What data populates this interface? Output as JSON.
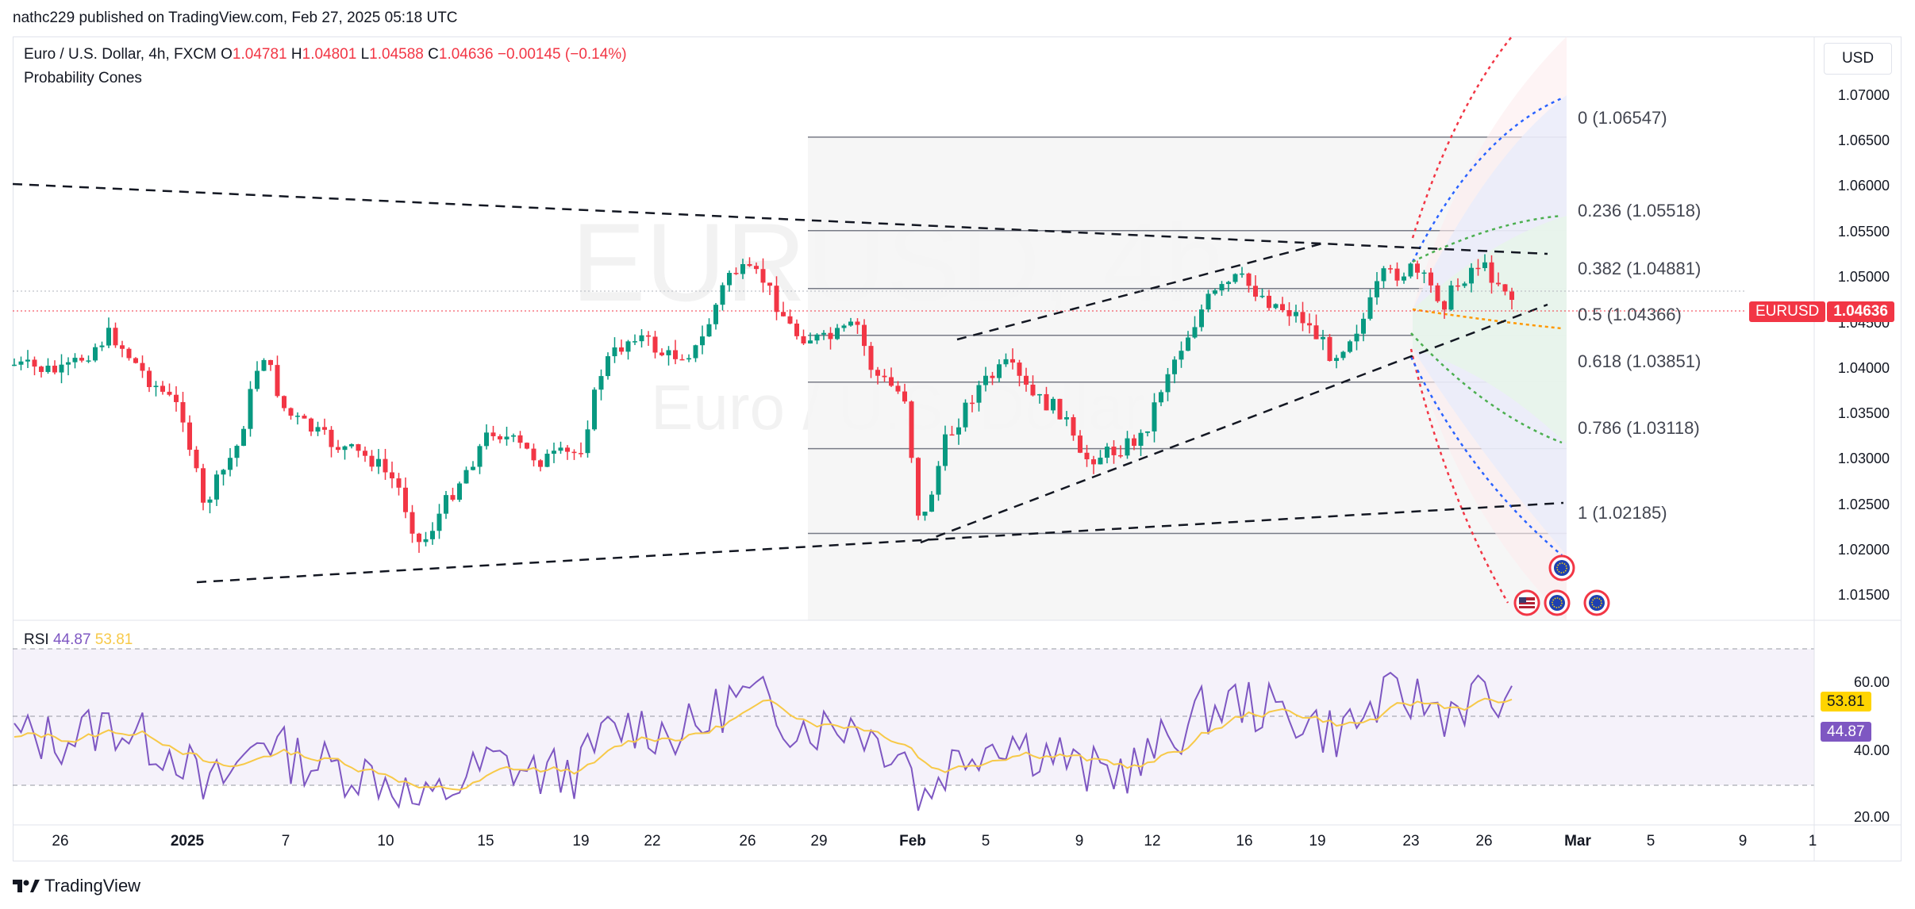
{
  "publisher": "nathc229 published on TradingView.com, Feb 27, 2025 05:18 UTC",
  "symbol": {
    "title": "Euro / U.S. Dollar, 4h, FXCM",
    "o_label": "O",
    "o": "1.04781",
    "h_label": "H",
    "h": "1.04801",
    "l_label": "L",
    "l": "1.04588",
    "c_label": "C",
    "c": "1.04636",
    "change": "−0.00145 (−0.14%)",
    "indicator": "Probability Cones"
  },
  "watermark": {
    "line1": "EURUSD, 4h",
    "line2": "Euro / U.S. Dollar"
  },
  "currency": "USD",
  "price_axis": [
    "1.07000",
    "1.06500",
    "1.06000",
    "1.05500",
    "1.05000",
    "1.04500",
    "1.04000",
    "1.03500",
    "1.03000",
    "1.02500",
    "1.02000",
    "1.01500"
  ],
  "price_tag": {
    "symbol": "EURUSD",
    "price": "1.04636"
  },
  "fib_levels": [
    {
      "label": "0 (1.06547)",
      "price": 1.06547
    },
    {
      "label": "0.236 (1.05518)",
      "price": 1.05518
    },
    {
      "label": "0.382 (1.04881)",
      "price": 1.04881
    },
    {
      "label": "0.5 (1.04366)",
      "price": 1.04366
    },
    {
      "label": "0.618 (1.03851)",
      "price": 1.03851
    },
    {
      "label": "0.786 (1.03118)",
      "price": 1.03118
    },
    {
      "label": "1 (1.02185)",
      "price": 1.02185
    }
  ],
  "rsi": {
    "label": "RSI",
    "value": "44.87",
    "ma": "53.81",
    "axis": [
      "60.00",
      "40.00",
      "20.00"
    ]
  },
  "date_axis": [
    "26",
    "2025",
    "7",
    "10",
    "15",
    "19",
    "22",
    "26",
    "29",
    "Feb",
    "5",
    "9",
    "12",
    "16",
    "19",
    "23",
    "26",
    "Mar",
    "5",
    "9",
    "1"
  ],
  "footer": "TradingView",
  "colors": {
    "up": "#089981",
    "down": "#f23645",
    "rsi": "#7e57c2",
    "rsi_ma": "#f7c948",
    "tag_red": "#f23645",
    "tag_purple": "#7e57c2",
    "tag_yellow": "#ffd400"
  },
  "icons": [
    "us-flag-icon",
    "eu-flag-icon",
    "eu-flag-icon",
    "eu-flag-icon",
    "eu-flag-icon"
  ]
}
